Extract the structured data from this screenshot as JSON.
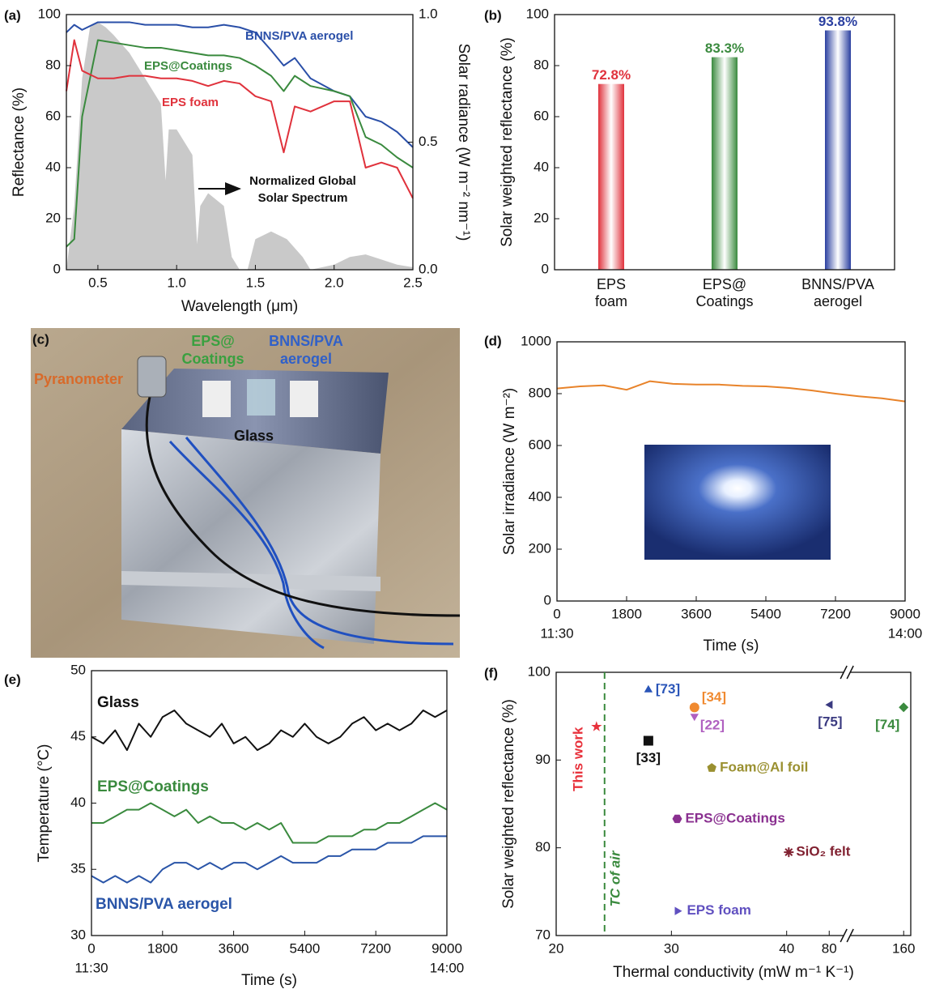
{
  "chart_data": [
    {
      "panel": "(a)",
      "type": "line",
      "xlabel": "Wavelength (μm)",
      "ylabel": "Reflectance (%)",
      "y2label": "Solar radiance (W m⁻² nm⁻¹)",
      "xlim": [
        0.3,
        2.5
      ],
      "xticks": [
        0.5,
        {
          "value": 1,
          "label": "1.0"
        },
        1.5,
        {
          "value": 2,
          "label": "2.0"
        },
        2.5
      ],
      "ylim": [
        0,
        100
      ],
      "yticks": [
        0,
        20,
        40,
        60,
        80,
        100
      ],
      "y2lim": [
        0,
        1
      ],
      "y2ticks": [
        {
          "value": 0,
          "label": "0.0"
        },
        0.5,
        {
          "value": 1,
          "label": "1.0"
        }
      ],
      "annotation": [
        "Normalized Global",
        "Solar Spectrum"
      ],
      "series": [
        {
          "type": "area",
          "axis": "y2",
          "color": "#c9c9c9",
          "x": [
            0.3,
            0.35,
            0.4,
            0.45,
            0.5,
            0.55,
            0.6,
            0.7,
            0.8,
            0.9,
            0.93,
            0.95,
            1.0,
            1.1,
            1.13,
            1.15,
            1.2,
            1.3,
            1.35,
            1.4,
            1.45,
            1.5,
            1.6,
            1.7,
            1.8,
            1.85,
            2.0,
            2.1,
            2.2,
            2.3,
            2.4,
            2.5
          ],
          "values": [
            0,
            0.25,
            0.75,
            0.95,
            0.97,
            0.95,
            0.92,
            0.85,
            0.75,
            0.65,
            0.35,
            0.55,
            0.55,
            0.45,
            0.1,
            0.25,
            0.3,
            0.25,
            0.05,
            0,
            0,
            0.12,
            0.15,
            0.12,
            0.05,
            0,
            0.02,
            0.05,
            0.06,
            0.04,
            0.02,
            0.01
          ]
        },
        {
          "name": "BNNS/PVA aerogel",
          "color": "#2a4fa8",
          "x": [
            0.3,
            0.35,
            0.4,
            0.5,
            0.6,
            0.7,
            0.8,
            0.9,
            1.0,
            1.1,
            1.2,
            1.3,
            1.4,
            1.5,
            1.6,
            1.68,
            1.75,
            1.85,
            2.0,
            2.1,
            2.2,
            2.3,
            2.4,
            2.5
          ],
          "values": [
            93,
            96,
            94,
            97,
            97,
            97,
            96,
            96,
            96,
            95,
            95,
            96,
            95,
            93,
            86,
            80,
            83,
            75,
            70,
            68,
            60,
            58,
            54,
            48
          ]
        },
        {
          "name": "EPS@Coatings",
          "color": "#3a8a3e",
          "x": [
            0.3,
            0.35,
            0.4,
            0.5,
            0.6,
            0.7,
            0.8,
            0.9,
            1.0,
            1.1,
            1.2,
            1.3,
            1.4,
            1.5,
            1.6,
            1.68,
            1.75,
            1.85,
            2.0,
            2.1,
            2.2,
            2.3,
            2.4,
            2.5
          ],
          "values": [
            9,
            12,
            60,
            90,
            89,
            88,
            87,
            87,
            86,
            85,
            84,
            84,
            83,
            80,
            76,
            70,
            76,
            72,
            70,
            68,
            52,
            49,
            44,
            40
          ]
        },
        {
          "name": "EPS foam",
          "color": "#e0323c",
          "x": [
            0.3,
            0.35,
            0.4,
            0.5,
            0.6,
            0.7,
            0.8,
            0.9,
            1.0,
            1.1,
            1.2,
            1.3,
            1.4,
            1.5,
            1.6,
            1.68,
            1.75,
            1.85,
            2.0,
            2.1,
            2.2,
            2.3,
            2.4,
            2.5
          ],
          "values": [
            70,
            90,
            78,
            75,
            75,
            76,
            76,
            75,
            75,
            74,
            72,
            74,
            73,
            68,
            66,
            46,
            64,
            62,
            66,
            66,
            40,
            42,
            40,
            28
          ]
        }
      ]
    },
    {
      "panel": "(b)",
      "type": "bar",
      "ylabel": "Solar weighted reflectance (%)",
      "categories": [
        [
          "EPS",
          "foam"
        ],
        [
          "EPS@",
          "Coatings"
        ],
        [
          "BNNS/PVA",
          "aerogel"
        ]
      ],
      "values": [
        72.8,
        83.3,
        93.8
      ],
      "value_labels": [
        "72.8%",
        "83.3%",
        "93.8%"
      ],
      "colors": [
        "#e0323c",
        "#3a8a3e",
        "#2a3fa0"
      ],
      "ylim": [
        0,
        100
      ],
      "yticks": [
        0,
        20,
        40,
        60,
        80,
        100
      ]
    },
    {
      "panel": "(d)",
      "type": "line",
      "xlabel": "Time (s)",
      "ylabel": "Solar irradiance (W m⁻²)",
      "xlim": [
        0,
        9000
      ],
      "xticks": [
        0,
        1800,
        3600,
        5400,
        7200,
        9000
      ],
      "time_labels": [
        {
          "value": 0,
          "label": "11:30"
        },
        {
          "value": 9000,
          "label": "14:00"
        }
      ],
      "ylim": [
        0,
        1000
      ],
      "yticks": [
        0,
        200,
        400,
        600,
        800,
        1000
      ],
      "x": [
        0,
        600,
        1200,
        1800,
        2400,
        3000,
        3600,
        4200,
        4800,
        5400,
        6000,
        6600,
        7200,
        7800,
        8400,
        9000
      ],
      "series": [
        {
          "color": "#e8832a",
          "values": [
            820,
            828,
            832,
            815,
            848,
            838,
            835,
            835,
            830,
            828,
            822,
            812,
            800,
            790,
            782,
            770
          ]
        }
      ]
    },
    {
      "panel": "(e)",
      "type": "line",
      "xlabel": "Time (s)",
      "ylabel": "Temperature (°C)",
      "xlim": [
        0,
        9000
      ],
      "xticks": [
        0,
        1800,
        3600,
        5400,
        7200,
        9000
      ],
      "time_labels": [
        {
          "value": 0,
          "label": "11:30"
        },
        {
          "value": 9000,
          "label": "14:00"
        }
      ],
      "ylim": [
        30,
        50
      ],
      "yticks": [
        30,
        35,
        40,
        45,
        50
      ],
      "x": [
        0,
        300,
        600,
        900,
        1200,
        1500,
        1800,
        2100,
        2400,
        2700,
        3000,
        3300,
        3600,
        3900,
        4200,
        4500,
        4800,
        5100,
        5400,
        5700,
        6000,
        6300,
        6600,
        6900,
        7200,
        7500,
        7800,
        8100,
        8400,
        8700,
        9000
      ],
      "series": [
        {
          "name": "Glass",
          "color": "#111111",
          "values": [
            45,
            44.5,
            45.5,
            44,
            46,
            45,
            46.5,
            47,
            46,
            45.5,
            45,
            46,
            44.5,
            45,
            44,
            44.5,
            45.5,
            45,
            46,
            45,
            44.5,
            45,
            46,
            46.5,
            45.5,
            46,
            45.5,
            46,
            47,
            46.5,
            47
          ]
        },
        {
          "name": "EPS@Coatings",
          "color": "#3a8a3e",
          "values": [
            38.5,
            38.5,
            39,
            39.5,
            39.5,
            40,
            39.5,
            39,
            39.5,
            38.5,
            39,
            38.5,
            38.5,
            38,
            38.5,
            38,
            38.5,
            37,
            37,
            37,
            37.5,
            37.5,
            37.5,
            38,
            38,
            38.5,
            38.5,
            39,
            39.5,
            40,
            39.5
          ]
        },
        {
          "name": "BNNS/PVA aerogel",
          "color": "#2a55a8",
          "values": [
            34.5,
            34,
            34.5,
            34,
            34.5,
            34,
            35,
            35.5,
            35.5,
            35,
            35.5,
            35,
            35.5,
            35.5,
            35,
            35.5,
            36,
            35.5,
            35.5,
            35.5,
            36,
            36,
            36.5,
            36.5,
            36.5,
            37,
            37,
            37,
            37.5,
            37.5,
            37.5
          ]
        }
      ]
    },
    {
      "panel": "(f)",
      "type": "scatter",
      "xlabel": "Thermal conductivity (mW m⁻¹ K⁻¹)",
      "ylabel": "Solar weighted reflectance (%)",
      "xlim": [
        20,
        160
      ],
      "xticks": [
        20,
        30,
        40,
        80,
        160
      ],
      "ylim": [
        70,
        100
      ],
      "yticks": [
        70,
        80,
        90,
        100
      ],
      "axis_break": true,
      "vline": {
        "x": 24.2,
        "label": "TC of air",
        "color": "#3a8a3e"
      },
      "points": [
        {
          "label": "This work",
          "x": 23.5,
          "y": 93.8,
          "marker": "star",
          "color": "#e8323c"
        },
        {
          "label": "[73]",
          "x": 28,
          "y": 98,
          "marker": "triangle-up",
          "color": "#2a55b8"
        },
        {
          "label": "[34]",
          "x": 32,
          "y": 96,
          "marker": "circle",
          "color": "#f08a30"
        },
        {
          "label": "[22]",
          "x": 32,
          "y": 95,
          "marker": "triangle-down",
          "color": "#b060c0"
        },
        {
          "label": "[33]",
          "x": 28,
          "y": 92.2,
          "marker": "square",
          "color": "#111111"
        },
        {
          "label": "[75]",
          "x": 81,
          "y": 96.3,
          "marker": "triangle-left",
          "color": "#3a3a80"
        },
        {
          "label": "[74]",
          "x": 160,
          "y": 96,
          "marker": "diamond",
          "color": "#3a8a3e"
        },
        {
          "label": "Foam@Al foil",
          "x": 33.5,
          "y": 89.1,
          "marker": "pentagon",
          "color": "#9a9030"
        },
        {
          "label": "EPS@Coatings",
          "x": 30.5,
          "y": 83.3,
          "marker": "hexagon",
          "color": "#8a3090"
        },
        {
          "label": "SiO₂ felt",
          "x": 42,
          "y": 79.5,
          "marker": "asterisk",
          "color": "#802030"
        },
        {
          "label": "EPS foam",
          "x": 30.5,
          "y": 72.8,
          "marker": "triangle-right",
          "color": "#6050c0"
        }
      ]
    }
  ],
  "photo": {
    "panel": "(c)",
    "pyranometer": "Pyranometer",
    "coatings": [
      "EPS@",
      "Coatings"
    ],
    "aerogel": [
      "BNNS/PVA",
      "aerogel"
    ],
    "glass": "Glass"
  }
}
